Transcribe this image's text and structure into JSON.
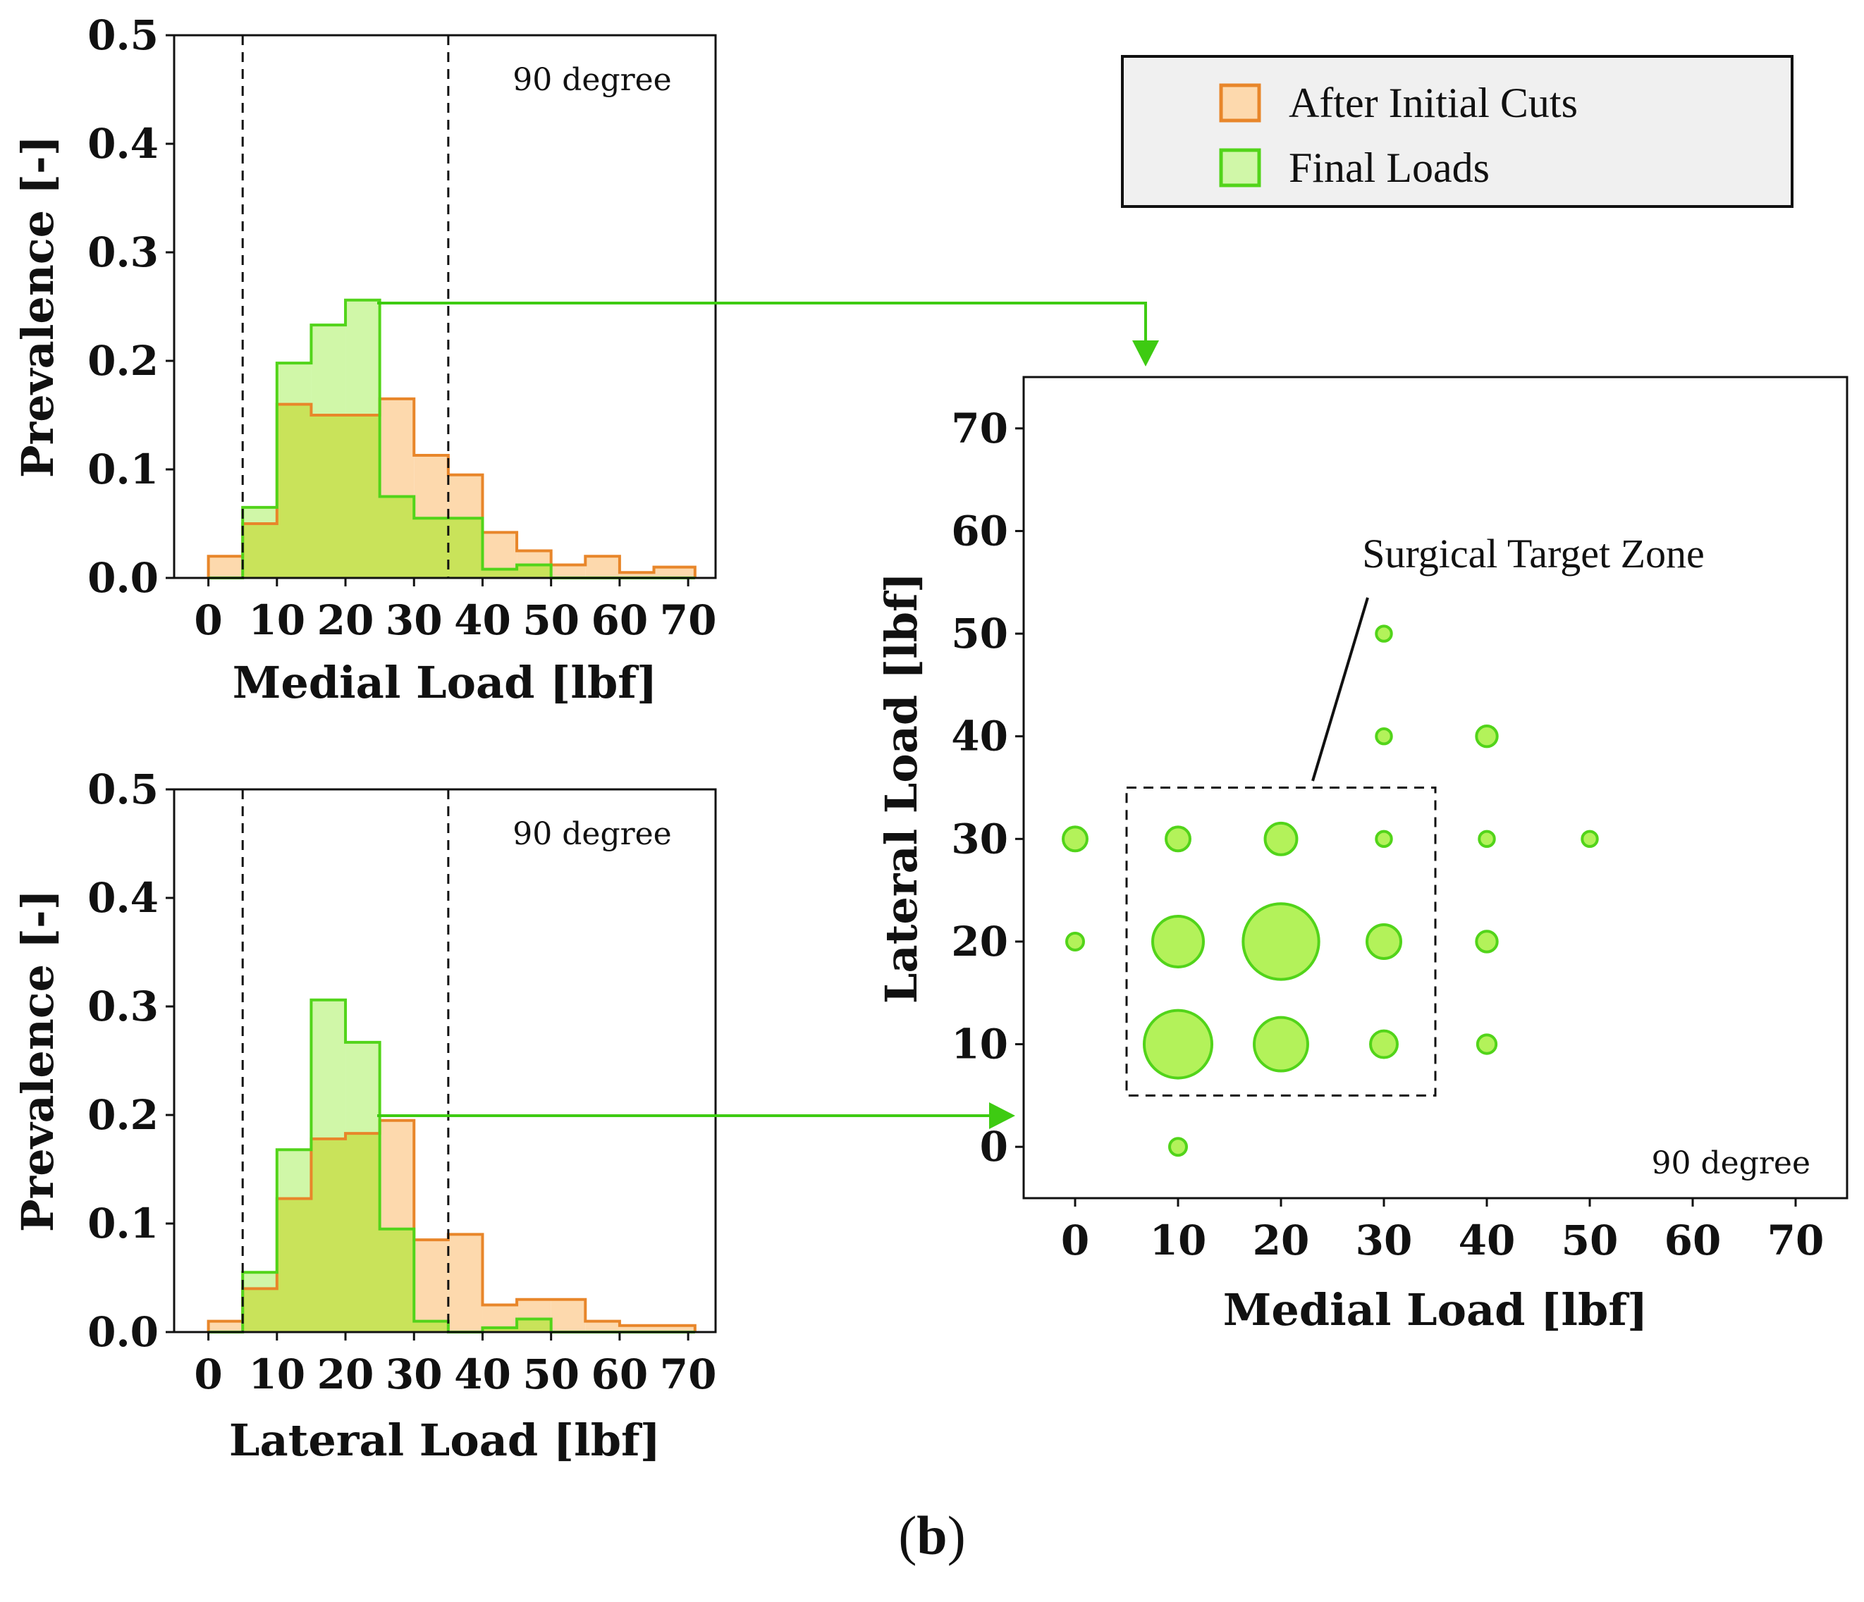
{
  "colors": {
    "orange_edge": "#e8862a",
    "orange_fill": "#fdd9ad",
    "green_edge": "#52d41a",
    "green_fill": "#d0f7a8",
    "overlap_fill": "#c9e35a",
    "bubble_fill": "#b3f25a",
    "arrow": "#3ecb12",
    "legend_bg": "#f0f0f0"
  },
  "chart_data": [
    {
      "id": "medial",
      "type": "step-histogram",
      "xlabel": "Medial Load [lbf]",
      "ylabel": "Prevalence [-]",
      "annotation": "90 degree",
      "xlim": [
        -5,
        74
      ],
      "ylim": [
        0,
        0.5
      ],
      "xticks": [
        0,
        10,
        20,
        30,
        40,
        50,
        60,
        70
      ],
      "yticks": [
        "0.0",
        "0.1",
        "0.2",
        "0.3",
        "0.4",
        "0.5"
      ],
      "reference_lines_x": [
        5,
        35
      ],
      "bin_edges": [
        0,
        5,
        10,
        15,
        20,
        25,
        30,
        35,
        40,
        45,
        50,
        55,
        60,
        65,
        71
      ],
      "series": [
        {
          "name": "After Initial Cuts",
          "values": [
            0.02,
            0.05,
            0.16,
            0.15,
            0.15,
            0.165,
            0.113,
            0.095,
            0.042,
            0.025,
            0.012,
            0.02,
            0.005,
            0.01
          ]
        },
        {
          "name": "Final Loads",
          "values": [
            0,
            0.065,
            0.198,
            0.233,
            0.256,
            0.075,
            0.055,
            0.055,
            0.008,
            0.012,
            0,
            0,
            0,
            0
          ]
        }
      ]
    },
    {
      "id": "lateral",
      "type": "step-histogram",
      "xlabel": "Lateral Load [lbf]",
      "ylabel": "Prevalence [-]",
      "annotation": "90 degree",
      "xlim": [
        -5,
        74
      ],
      "ylim": [
        0,
        0.5
      ],
      "xticks": [
        0,
        10,
        20,
        30,
        40,
        50,
        60,
        70
      ],
      "yticks": [
        "0.0",
        "0.1",
        "0.2",
        "0.3",
        "0.4",
        "0.5"
      ],
      "reference_lines_x": [
        5,
        35
      ],
      "bin_edges": [
        0,
        5,
        10,
        15,
        20,
        25,
        30,
        35,
        40,
        45,
        50,
        55,
        60,
        65,
        71
      ],
      "series": [
        {
          "name": "After Initial Cuts",
          "values": [
            0.01,
            0.04,
            0.123,
            0.178,
            0.183,
            0.195,
            0.085,
            0.09,
            0.025,
            0.03,
            0.03,
            0.01,
            0.006,
            0.006
          ]
        },
        {
          "name": "Final Loads",
          "values": [
            0,
            0.055,
            0.168,
            0.306,
            0.267,
            0.095,
            0.01,
            0,
            0.004,
            0.012,
            0,
            0,
            0,
            0
          ]
        }
      ]
    },
    {
      "id": "bubble",
      "type": "scatter",
      "xlabel": "Medial Load [lbf]",
      "ylabel": "Lateral Load [lbf]",
      "annotation": "90 degree",
      "xlim": [
        -5,
        75
      ],
      "ylim": [
        -5,
        75
      ],
      "xticks": [
        0,
        10,
        20,
        30,
        40,
        50,
        60,
        70
      ],
      "yticks": [
        0,
        10,
        20,
        30,
        40,
        50,
        60,
        70
      ],
      "zone_label": "Surgical Target Zone",
      "zone": {
        "x": [
          5,
          35
        ],
        "y": [
          5,
          35
        ]
      },
      "points": [
        {
          "x": 0,
          "y": 30,
          "count": 2
        },
        {
          "x": 0,
          "y": 20,
          "count": 1
        },
        {
          "x": 10,
          "y": 0,
          "count": 1
        },
        {
          "x": 10,
          "y": 10,
          "count": 16
        },
        {
          "x": 10,
          "y": 20,
          "count": 9
        },
        {
          "x": 10,
          "y": 30,
          "count": 2
        },
        {
          "x": 20,
          "y": 10,
          "count": 10
        },
        {
          "x": 20,
          "y": 20,
          "count": 20
        },
        {
          "x": 20,
          "y": 30,
          "count": 3.5
        },
        {
          "x": 30,
          "y": 10,
          "count": 2.5
        },
        {
          "x": 30,
          "y": 20,
          "count": 4
        },
        {
          "x": 30,
          "y": 30,
          "count": 0.8
        },
        {
          "x": 30,
          "y": 40,
          "count": 0.8
        },
        {
          "x": 30,
          "y": 50,
          "count": 0.8
        },
        {
          "x": 40,
          "y": 10,
          "count": 1.2
        },
        {
          "x": 40,
          "y": 20,
          "count": 1.5
        },
        {
          "x": 40,
          "y": 30,
          "count": 0.8
        },
        {
          "x": 40,
          "y": 40,
          "count": 1.5
        },
        {
          "x": 50,
          "y": 30,
          "count": 0.8
        }
      ]
    }
  ],
  "legend": {
    "items": [
      "After Initial Cuts",
      "Final Loads"
    ]
  },
  "panel_label": {
    "open": "(",
    "letter": "b",
    "close": ")"
  }
}
